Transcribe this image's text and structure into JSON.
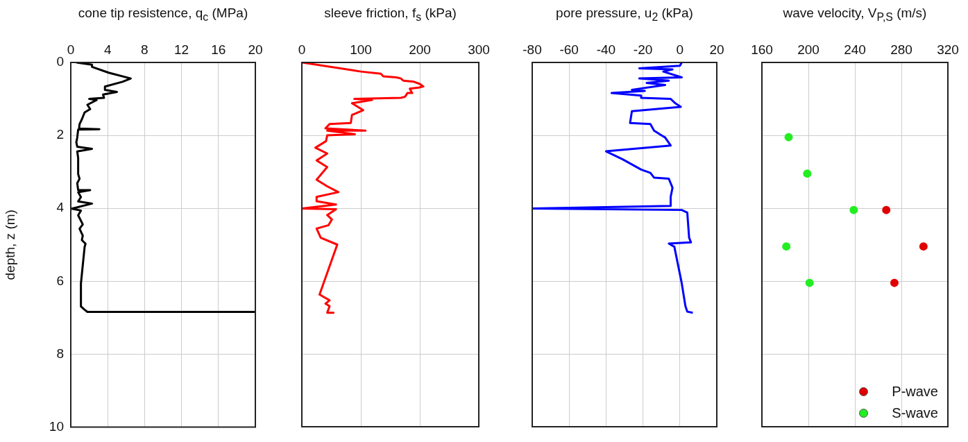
{
  "chart_data": [
    {
      "type": "line",
      "xlabel": "cone tip resistence, q$_{c}$ (MPa)",
      "ylabel": "depth, z (m)",
      "xlim": [
        0,
        20
      ],
      "xticks": [
        0,
        4,
        8,
        12,
        16,
        20
      ],
      "ylim": [
        10,
        0
      ],
      "yticks": [
        0,
        2,
        4,
        6,
        8,
        10
      ],
      "grid": true,
      "series": [
        {
          "color": "#000000",
          "x": [
            0.6,
            2.3,
            2.3,
            4.1,
            6.5,
            5.6,
            3.7,
            3.7,
            5.0,
            3.5,
            3.6,
            2.0,
            2.8,
            1.8,
            2.1,
            1.5,
            1.2,
            0.95,
            0.9,
            3.1,
            0.8,
            0.7,
            0.6,
            0.7,
            2.3,
            0.7,
            0.8,
            0.8,
            0.95,
            0.7,
            0.8,
            2.1,
            0.8,
            1.1,
            0.8,
            2.3,
            0.1,
            1.1,
            0.8,
            1.3,
            0.95,
            1.3,
            1.2,
            1.6,
            1.5,
            1.1,
            1.1,
            1.5,
            1.8,
            20
          ],
          "values": [
            0,
            0.06,
            0.12,
            0.28,
            0.44,
            0.53,
            0.66,
            0.75,
            0.81,
            0.88,
            0.97,
            1.0,
            1.03,
            1.16,
            1.28,
            1.37,
            1.56,
            1.69,
            1.81,
            1.83,
            1.84,
            2.06,
            2.19,
            2.31,
            2.37,
            2.44,
            2.62,
            3.06,
            3.19,
            3.31,
            3.5,
            3.5,
            3.56,
            3.69,
            3.81,
            3.87,
            4.01,
            4.06,
            4.19,
            4.44,
            4.56,
            4.75,
            4.87,
            4.97,
            5.06,
            6.06,
            6.69,
            6.78,
            6.84,
            6.84
          ]
        }
      ]
    },
    {
      "type": "line",
      "xlabel": "sleeve friction, f$_{s}$ (kPa)",
      "xlim": [
        0,
        300
      ],
      "xticks": [
        0,
        100,
        200,
        300
      ],
      "ylim": [
        10,
        0
      ],
      "yticks": [
        0,
        2,
        4,
        6,
        8,
        10
      ],
      "grid": true,
      "tick_labels": "x",
      "series": [
        {
          "color": "#ff0000",
          "x": [
            0,
            100,
            134,
            138,
            160,
            168,
            172,
            190,
            200,
            206,
            198,
            183,
            187,
            179,
            175,
            168,
            89,
            119,
            85,
            104,
            85,
            83,
            47,
            40,
            108,
            43,
            90,
            43,
            41,
            23,
            43,
            25,
            43,
            25,
            43,
            62,
            25,
            25,
            58,
            0,
            58,
            43,
            51,
            45,
            25,
            32,
            60,
            30,
            47,
            40,
            47,
            43,
            55
          ],
          "values": [
            0,
            0.25,
            0.31,
            0.38,
            0.41,
            0.44,
            0.5,
            0.53,
            0.59,
            0.66,
            0.69,
            0.72,
            0.84,
            0.84,
            0.94,
            0.97,
            1.0,
            1.03,
            1.12,
            1.31,
            1.44,
            1.66,
            1.69,
            1.81,
            1.87,
            1.87,
            1.97,
            2.0,
            2.16,
            2.34,
            2.5,
            2.69,
            2.87,
            3.22,
            3.4,
            3.56,
            3.69,
            3.81,
            3.9,
            4.01,
            4.03,
            4.19,
            4.31,
            4.47,
            4.56,
            4.81,
            5.0,
            6.37,
            6.53,
            6.62,
            6.69,
            6.87,
            6.87
          ]
        }
      ]
    },
    {
      "type": "line",
      "xlabel": "pore pressure, u$_{2}$ (kPa)",
      "xlim": [
        -80,
        20
      ],
      "xticks": [
        -80,
        -60,
        -40,
        -20,
        0,
        20
      ],
      "ylim": [
        10,
        0
      ],
      "yticks": [
        0,
        2,
        4,
        6,
        8,
        10
      ],
      "grid": true,
      "tick_labels": "x",
      "series": [
        {
          "color": "#0000ff",
          "x": [
            1,
            0,
            -22,
            -4,
            -9,
            1,
            -22,
            -6,
            -18,
            -8,
            -26,
            -19,
            -37,
            -21,
            -21,
            -5,
            -2.5,
            0.5,
            -26,
            -27,
            -16,
            -14,
            -10,
            -8,
            -5,
            -40,
            -31,
            -21,
            -16,
            -14,
            -6,
            -4,
            -5,
            -5,
            -80,
            1,
            4,
            5,
            6,
            -6,
            -3,
            1,
            3,
            4,
            7
          ],
          "values": [
            0,
            0.09,
            0.16,
            0.19,
            0.25,
            0.41,
            0.44,
            0.5,
            0.56,
            0.62,
            0.75,
            0.78,
            0.84,
            0.91,
            0.97,
            1.0,
            1.12,
            1.22,
            1.34,
            1.66,
            1.69,
            1.87,
            2.0,
            2.06,
            2.28,
            2.44,
            2.66,
            2.94,
            3.03,
            3.16,
            3.19,
            3.44,
            3.69,
            3.94,
            4.01,
            4.05,
            4.12,
            4.81,
            4.94,
            4.97,
            5.06,
            6.06,
            6.69,
            6.84,
            6.87
          ]
        }
      ]
    },
    {
      "type": "scatter",
      "xlabel": "wave velocity, V$_{P,S}$ (m/s)",
      "xlim": [
        160,
        320
      ],
      "xticks": [
        160,
        200,
        240,
        280,
        320
      ],
      "ylim": [
        10,
        0
      ],
      "yticks": [
        0,
        2,
        4,
        6,
        8,
        10
      ],
      "grid": true,
      "tick_labels": "x",
      "marker": "circle",
      "legend": "bottom right",
      "series": [
        {
          "name": "P-wave",
          "color": "#e00000",
          "x": [
            267,
            299,
            274
          ],
          "values": [
            4.05,
            5.05,
            6.05
          ]
        },
        {
          "name": "S-wave",
          "color": "#22ee22",
          "x": [
            183,
            199,
            239,
            181,
            201
          ],
          "values": [
            2.05,
            3.05,
            4.05,
            5.05,
            6.05
          ]
        }
      ]
    }
  ]
}
